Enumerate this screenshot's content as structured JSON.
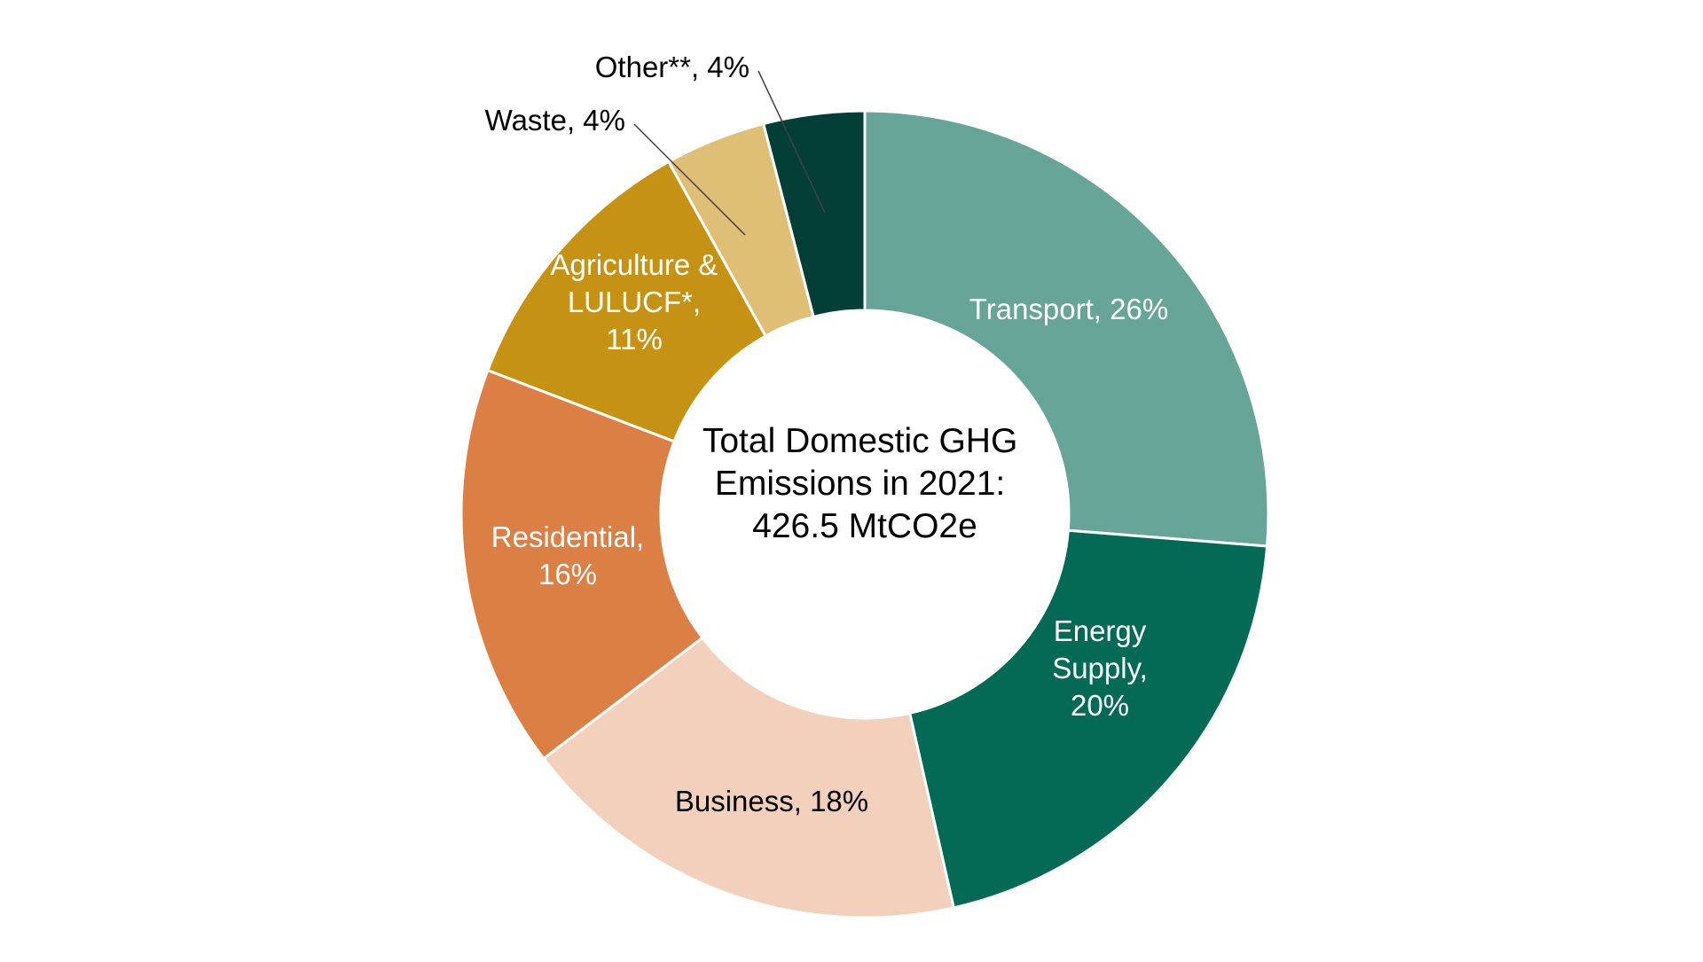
{
  "chart_data": {
    "type": "pie",
    "variant": "donut",
    "center_text": [
      "Total Domestic GHG",
      "Emissions in 2021:",
      "426.5 MtCO2e"
    ],
    "slices": [
      {
        "name": "Transport",
        "value": 26,
        "color": "#67A599",
        "label_lines": [
          "Transport, 26%"
        ],
        "label_color": "#ffffff"
      },
      {
        "name": "Energy Supply",
        "value": 20,
        "color": "#036B55",
        "label_lines": [
          "Energy",
          "Supply,",
          "20%"
        ],
        "label_color": "#ffffff"
      },
      {
        "name": "Business",
        "value": 18,
        "color": "#F2D0BB",
        "label_lines": [
          "Business, 18%"
        ],
        "label_color": "#000000"
      },
      {
        "name": "Residential",
        "value": 16,
        "color": "#DC7F45",
        "label_lines": [
          "Residential,",
          "16%"
        ],
        "label_color": "#ffffff"
      },
      {
        "name": "Agriculture & LULUCF*",
        "value": 11,
        "color": "#C69214",
        "label_lines": [
          "Agriculture &",
          "LULUCF*,",
          "11%"
        ],
        "label_color": "#ffffff"
      },
      {
        "name": "Waste",
        "value": 4,
        "color": "#DFBF76",
        "label_lines": [
          "Waste, 4%"
        ],
        "label_color": "#000000",
        "callout": true
      },
      {
        "name": "Other**",
        "value": 4,
        "color": "#033F36",
        "label_lines": [
          "Other**, 4%"
        ],
        "label_color": "#000000",
        "callout": true
      }
    ],
    "start_angle": "top",
    "direction": "clockwise",
    "legend": "none"
  }
}
